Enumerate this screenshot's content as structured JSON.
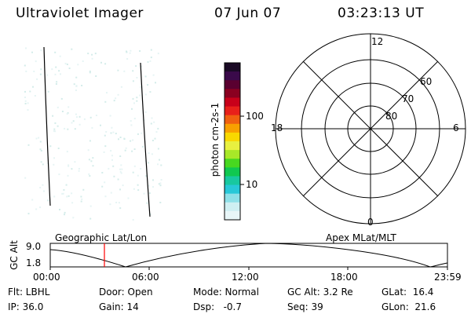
{
  "header": {
    "instrument": "Ultraviolet Imager",
    "date": "07 Jun 07",
    "time": "03:23:13 UT"
  },
  "colorbar": {
    "axis_label": "photon cm-2s-1",
    "ticks": [
      "100",
      "10"
    ],
    "colors": [
      "#1a0a25",
      "#3a0a4a",
      "#5a0030",
      "#8a0020",
      "#c8001a",
      "#e8201a",
      "#f06010",
      "#f8a000",
      "#f8d800",
      "#e8f040",
      "#a8e828",
      "#48d820",
      "#10c850",
      "#18c8a0",
      "#28c8d8",
      "#8ee0e8",
      "#cfeff2",
      "#e8f6f8"
    ]
  },
  "polar_grid": {
    "mlt_labels": [
      "12",
      "18",
      "6",
      "0"
    ],
    "mlat_labels": [
      "60",
      "70",
      "80"
    ]
  },
  "timeline": {
    "left_label": "Geographic Lat/Lon",
    "right_label": "Apex MLat/MLT",
    "y_axis_label": "GC Alt",
    "y_ticks": [
      "9.0",
      "1.8"
    ],
    "x_ticks": [
      "00:00",
      "06:00",
      "12:00",
      "18:00",
      "23:59"
    ],
    "current_time_marker": "03:23",
    "marker_color": "#ff0000"
  },
  "info": {
    "flt": "Flt: LBHL",
    "ip": "IP: 36.0",
    "door": "Door: Open",
    "gain": "Gain: 14",
    "mode": "Mode: Normal",
    "dsp": "Dsp:   -0.7",
    "gc_alt": "GC Alt: 3.2 Re",
    "seq": "Seq: 39",
    "glat": "GLat:  16.4",
    "glon": "GLon:  21.6"
  }
}
